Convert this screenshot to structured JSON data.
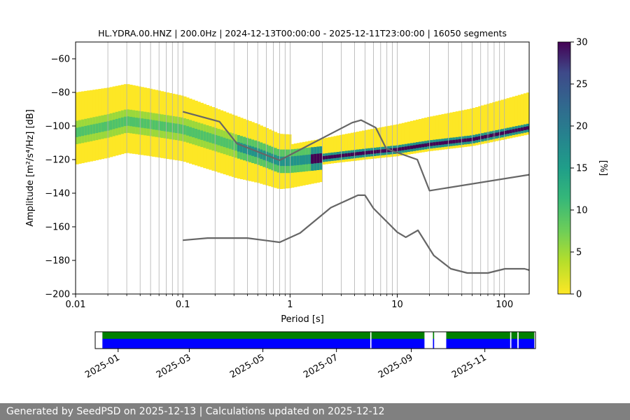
{
  "chart_data": [
    {
      "type": "heatmap",
      "title": "HL.YDRA.00.HNZ | 200.0Hz | 2024-12-13T00:00:00 - 2025-12-11T23:00:00 | 16050 segments",
      "xlabel": "Period [s]",
      "ylabel": "Amplitude [m²/s⁴/Hz] [dB]",
      "xscale": "log",
      "xlim": [
        0.01,
        170
      ],
      "ylim": [
        -200,
        -50
      ],
      "xticks": [
        "0.01",
        "0.1",
        "1",
        "10",
        "100"
      ],
      "yticks": [
        "−60",
        "−80",
        "−100",
        "−120",
        "−140",
        "−160",
        "−180",
        "−200"
      ],
      "grid": "vertical",
      "colormap": "viridis_r",
      "colorbar": {
        "label": "[%]",
        "min": 0,
        "max": 30,
        "ticks": [
          "0",
          "5",
          "10",
          "15",
          "20",
          "25",
          "30"
        ]
      },
      "density_mode": {
        "period": [
          0.01,
          0.02,
          0.03,
          0.05,
          0.1,
          0.2,
          0.5,
          0.8,
          1,
          2,
          5,
          10,
          20,
          50,
          100,
          170
        ],
        "amplitude": [
          -104,
          -100,
          -97,
          -99,
          -102,
          -108,
          -116,
          -121,
          -121,
          -119,
          -116,
          -114,
          -111,
          -108,
          -104,
          -101
        ]
      },
      "series": [
        {
          "name": "",
          "x": [
            0.1,
            0.22,
            0.32,
            0.8,
            3.8,
            4.6,
            6.3,
            7.9,
            15.4,
            20,
            170
          ],
          "y": [
            -91.5,
            -97.4,
            -110.5,
            -120.4,
            -98,
            -96.5,
            -101,
            -113.5,
            -120,
            -138.5,
            -129
          ]
        },
        {
          "name": "",
          "x": [
            0.1,
            0.17,
            0.4,
            0.8,
            1.24,
            2.4,
            4.3,
            5.0,
            6.0,
            10,
            12,
            15.6,
            21.9,
            31.6,
            45,
            70,
            101,
            154,
            170
          ],
          "y": [
            -168,
            -166.7,
            -166.7,
            -169.2,
            -163.7,
            -148.6,
            -141.2,
            -141.2,
            -149,
            -163.2,
            -166.2,
            -162.1,
            -177.1,
            -185,
            -187.5,
            -187.5,
            -185,
            -185,
            -185.8
          ]
        }
      ]
    },
    {
      "type": "timeline",
      "xticks": [
        "2025-01",
        "2025-03",
        "2025-05",
        "2025-07",
        "2025-09",
        "2025-11"
      ],
      "range": [
        "2024-12-13",
        "2025-12-13"
      ],
      "colors": {
        "top": "#008000",
        "bottom": "#0000ff"
      },
      "coverage": [
        {
          "start": "2024-12-13",
          "end": "2024-12-19",
          "value": 0
        },
        {
          "start": "2024-12-19",
          "end": "2025-07-29",
          "value": 1
        },
        {
          "start": "2025-07-29",
          "end": "2025-07-30",
          "value": 0
        },
        {
          "start": "2025-07-30",
          "end": "2025-09-12",
          "value": 1
        },
        {
          "start": "2025-09-12",
          "end": "2025-09-19",
          "value": 0
        },
        {
          "start": "2025-09-19",
          "end": "2025-09-20",
          "value": 1
        },
        {
          "start": "2025-09-20",
          "end": "2025-09-30",
          "value": 0
        },
        {
          "start": "2025-09-30",
          "end": "2025-11-22",
          "value": 1
        },
        {
          "start": "2025-11-22",
          "end": "2025-11-23",
          "value": 0
        },
        {
          "start": "2025-11-23",
          "end": "2025-11-28",
          "value": 1
        },
        {
          "start": "2025-11-28",
          "end": "2025-11-29",
          "value": 0
        },
        {
          "start": "2025-11-29",
          "end": "2025-12-12",
          "value": 1
        },
        {
          "start": "2025-12-12",
          "end": "2025-12-13",
          "value": 0
        }
      ]
    }
  ],
  "footer": {
    "text": "Generated by SeedPSD on 2025-12-13 | Calculations updated on 2025-12-12"
  }
}
